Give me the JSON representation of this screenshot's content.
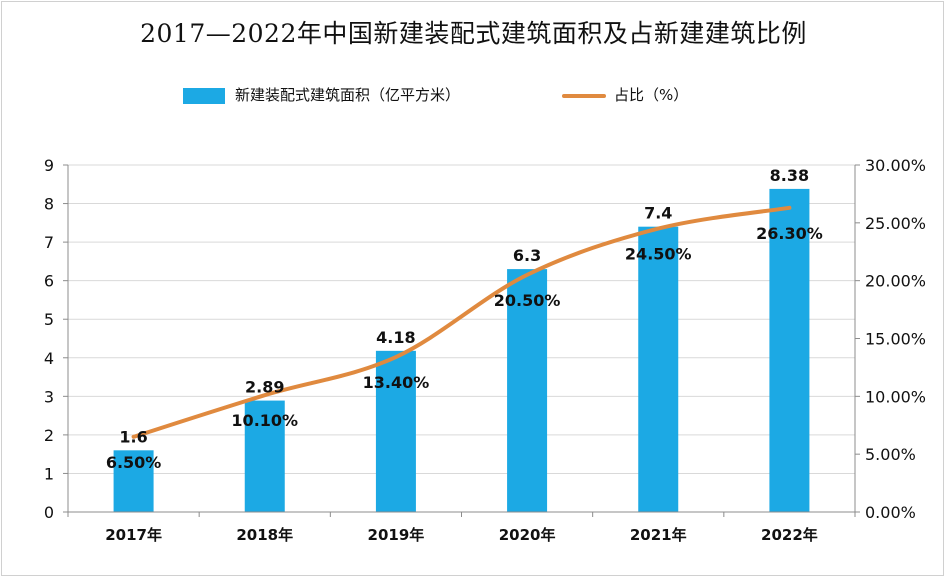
{
  "title": "2017—2022年中国新建装配式建筑面积及占新建建筑比例",
  "colors": {
    "bar": "#1CA9E4",
    "line": "#E08A3F",
    "grid": "#D9D9D9",
    "axis": "#8C8C8C",
    "text": "#111111"
  },
  "chart_data": {
    "type": "bar",
    "title": "2017—2022年中国新建装配式建筑面积及占新建建筑比例",
    "categories": [
      "2017年",
      "2018年",
      "2019年",
      "2020年",
      "2021年",
      "2022年"
    ],
    "series": [
      {
        "name": "新建装配式建筑面积（亿平方米）",
        "type": "bar",
        "axis": "left",
        "values": [
          1.6,
          2.89,
          4.18,
          6.3,
          7.4,
          8.38
        ],
        "labels": [
          "1.6",
          "2.89",
          "4.18",
          "6.3",
          "7.4",
          "8.38"
        ]
      },
      {
        "name": "占比（%）",
        "type": "line",
        "axis": "right",
        "smooth": true,
        "values": [
          6.5,
          10.1,
          13.4,
          20.5,
          24.5,
          26.3
        ],
        "labels": [
          "6.50%",
          "10.10%",
          "13.40%",
          "20.50%",
          "24.50%",
          "26.30%"
        ]
      }
    ],
    "y_left": {
      "ylim": [
        0,
        9
      ],
      "ticks": [
        "0",
        "1",
        "2",
        "3",
        "4",
        "5",
        "6",
        "7",
        "8",
        "9"
      ]
    },
    "y_right": {
      "ylim": [
        0,
        30
      ],
      "ticks": [
        "0.00%",
        "5.00%",
        "10.00%",
        "15.00%",
        "20.00%",
        "25.00%",
        "30.00%"
      ]
    },
    "xlabel": "",
    "ylabel": "",
    "grid": true,
    "legend_position": "top"
  }
}
